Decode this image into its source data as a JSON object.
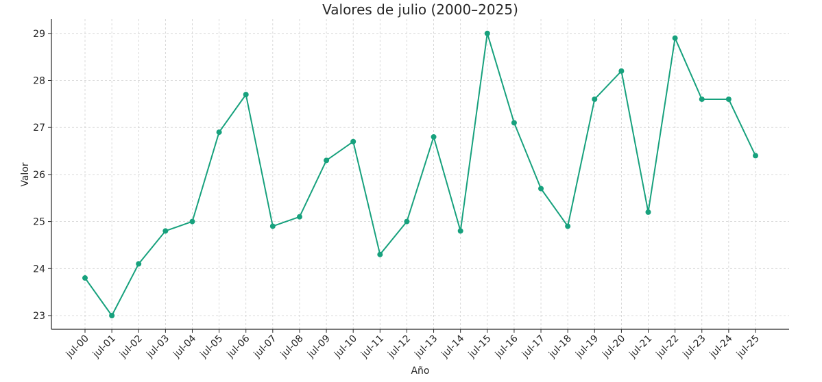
{
  "chart_data": {
    "type": "line",
    "title": "Valores de julio (2000–2025)",
    "xlabel": "Año",
    "ylabel": "Valor",
    "categories": [
      "jul-00",
      "jul-01",
      "jul-02",
      "jul-03",
      "jul-04",
      "jul-05",
      "jul-06",
      "jul-07",
      "jul-08",
      "jul-09",
      "jul-10",
      "jul-11",
      "jul-12",
      "jul-13",
      "jul-14",
      "jul-15",
      "jul-16",
      "jul-17",
      "jul-18",
      "jul-19",
      "jul-20",
      "jul-21",
      "jul-22",
      "jul-23",
      "jul-24",
      "jul-25"
    ],
    "series": [
      {
        "values": [
          23.8,
          23.0,
          24.1,
          24.8,
          25.0,
          26.9,
          27.7,
          24.9,
          25.1,
          26.3,
          26.7,
          24.3,
          25.0,
          26.8,
          24.8,
          29.0,
          27.1,
          25.7,
          24.9,
          27.6,
          28.2,
          25.2,
          28.9,
          27.6,
          27.6,
          26.4
        ],
        "color": "#17a17d",
        "marker": "circle"
      }
    ],
    "yticks": [
      23,
      24,
      25,
      26,
      27,
      28,
      29
    ],
    "ylim": [
      22.7,
      29.3
    ],
    "grid": true,
    "legend": "none"
  }
}
